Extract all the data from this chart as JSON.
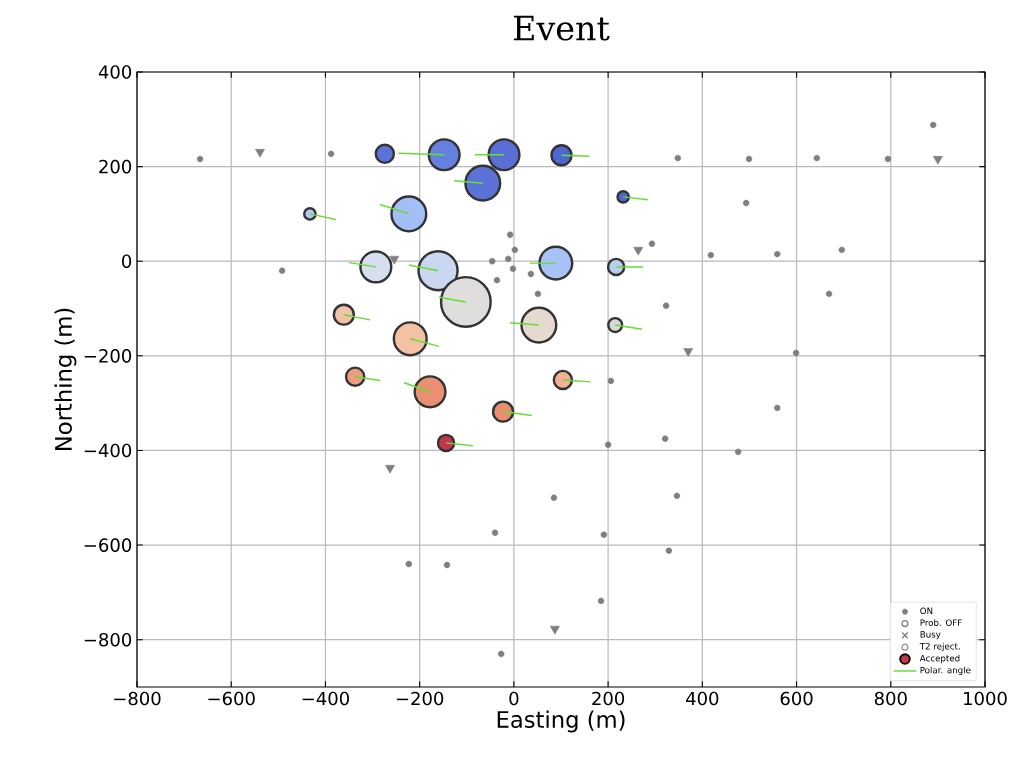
{
  "chart_data": {
    "type": "scatter",
    "title": "Event",
    "xlabel": "Easting (m)",
    "ylabel": "Northing (m)",
    "xlim": [
      -800,
      1000
    ],
    "ylim": [
      -900,
      400
    ],
    "xticks": [
      {
        "value": -800,
        "label": "−800"
      },
      {
        "value": -600,
        "label": "−600"
      },
      {
        "value": -400,
        "label": "−400"
      },
      {
        "value": -200,
        "label": "−200"
      },
      0,
      200,
      400,
      600,
      800,
      1000
    ],
    "yticks": [
      {
        "value": -800,
        "label": "−800"
      },
      {
        "value": -600,
        "label": "−600"
      },
      {
        "value": -400,
        "label": "−400"
      },
      {
        "value": -200,
        "label": "−200"
      },
      0,
      200,
      400
    ],
    "grid": true,
    "legend": "bottom right",
    "series": [
      {
        "name": "ON",
        "marker": "circle",
        "color": "#7f7f7f",
        "x": [
          -666,
          -388,
          -492,
          -8,
          2,
          -46,
          -12,
          -2,
          -36,
          36,
          51,
          890,
          348,
          499,
          643,
          794,
          493,
          293,
          418,
          559,
          696,
          669,
          323,
          599,
          206,
          559,
          321,
          200,
          476,
          346,
          191,
          329,
          185,
          85,
          -40,
          -223,
          -142,
          -27
        ],
        "values": [
          216,
          227,
          -20,
          56,
          24,
          0,
          5,
          -16,
          -40,
          -27,
          -69,
          288,
          218,
          216,
          218,
          216,
          123,
          37,
          13,
          15,
          24,
          -69,
          -94,
          -194,
          -253,
          -310,
          -375,
          -388,
          -403,
          -496,
          -578,
          -612,
          -718,
          -500,
          -574,
          -640,
          -642,
          -830
        ]
      },
      {
        "marker": "triangle",
        "color": "#7f7f7f",
        "x": [
          -539,
          -254,
          900,
          264,
          370,
          -263,
          87
        ],
        "values": [
          231,
          5,
          216,
          24,
          -190,
          -437,
          -777
        ]
      },
      {
        "name": "Prob. OFF",
        "marker": "circle",
        "color": "#7f7f7f"
      },
      {
        "name": "Busy",
        "marker": "cross",
        "color": "#7f7f7f"
      },
      {
        "name": "T2 reject.",
        "marker": "circle",
        "color": "#8a9a9a"
      },
      {
        "name": "Accepted",
        "type": "bubble",
        "marker": "circle",
        "color": "#c8334d",
        "x": [
          -274,
          -148,
          -21,
          101,
          -66,
          -223,
          -433,
          -293,
          -161,
          -102,
          53,
          -361,
          -220,
          -337,
          -178,
          -23,
          -144,
          104,
          89,
          232,
          217,
          215
        ],
        "values": [
          227,
          225,
          225,
          224,
          165,
          100,
          100,
          -12,
          -20,
          -86,
          -135,
          -113,
          -164,
          -244,
          -276,
          -318,
          -384,
          -251,
          -4,
          136,
          -12,
          -135
        ],
        "sizes": [
          0.18,
          0.43,
          0.43,
          0.21,
          0.53,
          0.53,
          0.09,
          0.43,
          0.65,
          1,
          0.53,
          0.21,
          0.48,
          0.18,
          0.43,
          0.21,
          0.15,
          0.18,
          0.48,
          0.09,
          0.15,
          0.12
        ],
        "colors": [
          "#5b73d8",
          "#6680e0",
          "#5a6fd6",
          "#4e66cf",
          "#5b73d8",
          "#a3bff5",
          "#b7c9f0",
          "#d5dff0",
          "#cad7f0",
          "#e0dedd",
          "#e6d9d0",
          "#f2c2a8",
          "#f4c1a5",
          "#ec9c80",
          "#e98f72",
          "#e88f72",
          "#c8334d",
          "#f2b195",
          "#a9c2f5",
          "#4d65cd",
          "#b9cdf0",
          "#d9d8d6"
        ]
      },
      {
        "name": "Polar. angle",
        "type": "line",
        "marker": "none",
        "color": "#66dd33",
        "x": [
          -148,
          -245,
          null,
          -21,
          -83,
          null,
          101,
          160,
          null,
          -66,
          -127,
          null,
          -223,
          -284,
          null,
          -433,
          -378,
          null,
          -293,
          -350,
          null,
          -161,
          -223,
          null,
          -102,
          -159,
          null,
          53,
          -8,
          null,
          -361,
          -305,
          null,
          -220,
          -159,
          null,
          -337,
          -284,
          null,
          -178,
          -233,
          null,
          -23,
          38,
          null,
          -144,
          -87,
          null,
          104,
          163,
          null,
          89,
          34,
          null,
          232,
          285,
          null,
          217,
          274,
          null,
          215,
          272
        ],
        "values": [
          225,
          228,
          null,
          225,
          225,
          null,
          224,
          222,
          null,
          165,
          170,
          null,
          100,
          120,
          null,
          100,
          88,
          null,
          -12,
          -3,
          null,
          -20,
          -8,
          null,
          -86,
          -76,
          null,
          -135,
          -130,
          null,
          -113,
          -124,
          null,
          -164,
          -180,
          null,
          -244,
          -252,
          null,
          -276,
          -257,
          null,
          -318,
          -326,
          null,
          -384,
          -390,
          null,
          -251,
          -255,
          null,
          -4,
          -4,
          null,
          136,
          130,
          null,
          -12,
          -12,
          null,
          -135,
          -144
        ]
      }
    ]
  }
}
